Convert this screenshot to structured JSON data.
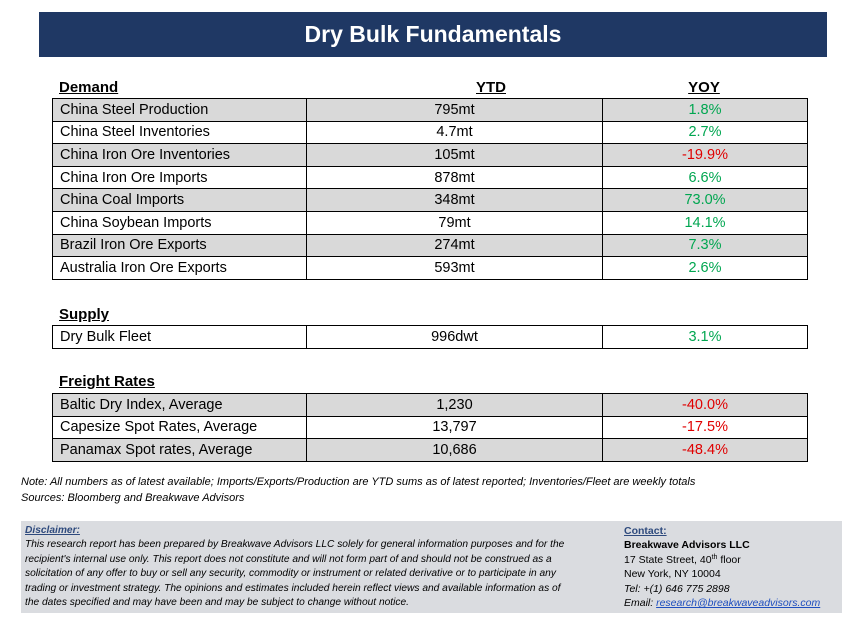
{
  "title": "Dry Bulk Fundamentals",
  "columns": {
    "ytd": "YTD",
    "yoy": "YOY"
  },
  "demand": {
    "heading": "Demand",
    "rows": [
      {
        "label": "China Steel Production",
        "ytd": "795mt",
        "yoy": "1.8%",
        "trend": "pos"
      },
      {
        "label": "China Steel Inventories",
        "ytd": "4.7mt",
        "yoy": "2.7%",
        "trend": "pos"
      },
      {
        "label": "China Iron Ore Inventories",
        "ytd": "105mt",
        "yoy": "-19.9%",
        "trend": "neg"
      },
      {
        "label": "China Iron Ore Imports",
        "ytd": "878mt",
        "yoy": "6.6%",
        "trend": "pos"
      },
      {
        "label": "China Coal Imports",
        "ytd": "348mt",
        "yoy": "73.0%",
        "trend": "pos"
      },
      {
        "label": "China Soybean Imports",
        "ytd": "79mt",
        "yoy": "14.1%",
        "trend": "pos"
      },
      {
        "label": "Brazil Iron Ore Exports",
        "ytd": "274mt",
        "yoy": "7.3%",
        "trend": "pos"
      },
      {
        "label": "Australia Iron Ore Exports",
        "ytd": "593mt",
        "yoy": "2.6%",
        "trend": "pos"
      }
    ]
  },
  "supply": {
    "heading": "Supply",
    "rows": [
      {
        "label": "Dry Bulk Fleet",
        "ytd": "996dwt",
        "yoy": "3.1%",
        "trend": "pos"
      }
    ]
  },
  "freight": {
    "heading": "Freight Rates",
    "rows": [
      {
        "label": "Baltic Dry Index, Average",
        "ytd": "1,230",
        "yoy": "-40.0%",
        "trend": "neg"
      },
      {
        "label": "Capesize Spot Rates, Average",
        "ytd": "13,797",
        "yoy": "-17.5%",
        "trend": "neg"
      },
      {
        "label": "Panamax Spot rates, Average",
        "ytd": "10,686",
        "yoy": "-48.4%",
        "trend": "neg"
      }
    ]
  },
  "notes": {
    "note": "Note:  All numbers as of latest available; Imports/Exports/Production are YTD sums as of latest reported; Inventories/Fleet are weekly totals",
    "sources": "Sources: Bloomberg and Breakwave Advisors"
  },
  "disclaimer": {
    "label": "Disclaimer:",
    "lines": [
      "This research report has been prepared by Breakwave Advisors LLC solely for general information purposes and for the",
      "recipient's internal use only. This report does not constitute and will not form part of and should not be construed as a",
      "solicitation of any offer to buy or sell any security, commodity or instrument or related derivative or to participate in any",
      "trading or investment strategy. The opinions and estimates included herein reflect views and available information as of",
      "the dates specified and may have been and may be subject to change without notice."
    ]
  },
  "contact": {
    "label": "Contact:",
    "firm": "Breakwave Advisors LLC",
    "street_pre": "17 State Street, 40",
    "street_sup": "th",
    "street_post": " floor",
    "city": "New York, NY 10004",
    "tel": "Tel: +(1) 646 775 2898",
    "email_label": "Email: ",
    "email": "research@breakwaveadvisors.com"
  },
  "colors": {
    "title_bg": "#1f3864",
    "positive": "#00a650",
    "negative": "#e00000",
    "row_shade": "#d9d9d9",
    "disclaimer_bg": "#dadce0"
  }
}
